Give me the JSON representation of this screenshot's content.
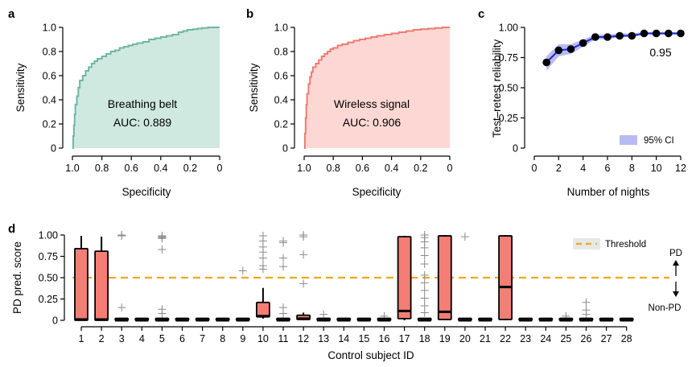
{
  "colors": {
    "belt_line": "#6fb7a2",
    "belt_fill": "#cfe8e0",
    "wireless_line": "#ee7b74",
    "wireless_fill": "#fdd7d4",
    "reliability_line": "#1f28d8",
    "ci_fill": "#b8bbf2",
    "box_fill": "#f47e75",
    "threshold": "#f0a81d",
    "outlier": "#8a8a8a"
  },
  "chart_data": [
    {
      "panel": "a",
      "type": "area",
      "title": "",
      "xlabel": "Specificity",
      "ylabel": "Sensitivity",
      "x_reversed": true,
      "xlim": [
        1.0,
        0
      ],
      "ylim": [
        0,
        1.0
      ],
      "x_ticks": [
        "1.0",
        "0.8",
        "0.6",
        "0.4",
        "0.2",
        "0"
      ],
      "x_tick_values": [
        1.0,
        0.8,
        0.6,
        0.4,
        0.2,
        0
      ],
      "y_ticks": [
        "0",
        "0.2",
        "0.4",
        "0.6",
        "0.8",
        "1.0"
      ],
      "y_tick_values": [
        0,
        0.2,
        0.4,
        0.6,
        0.8,
        1.0
      ],
      "annotation_name": "Breathing belt",
      "annotation_auc": "AUC: 0.889",
      "x": [
        1.0,
        0.995,
        0.99,
        0.985,
        0.98,
        0.97,
        0.96,
        0.95,
        0.93,
        0.91,
        0.89,
        0.87,
        0.85,
        0.83,
        0.8,
        0.77,
        0.74,
        0.71,
        0.68,
        0.65,
        0.62,
        0.59,
        0.56,
        0.52,
        0.48,
        0.44,
        0.4,
        0.36,
        0.32,
        0.28,
        0.25,
        0.22,
        0.18,
        0.15,
        0.12,
        0.08,
        0.05,
        0.02,
        0
      ],
      "y": [
        0,
        0.1,
        0.19,
        0.28,
        0.36,
        0.43,
        0.5,
        0.56,
        0.6,
        0.64,
        0.67,
        0.7,
        0.72,
        0.74,
        0.76,
        0.78,
        0.8,
        0.81,
        0.83,
        0.84,
        0.85,
        0.86,
        0.87,
        0.88,
        0.9,
        0.91,
        0.92,
        0.93,
        0.94,
        0.96,
        0.97,
        0.98,
        0.985,
        0.99,
        0.995,
        1.0,
        1.0,
        1.0,
        1.0
      ]
    },
    {
      "panel": "b",
      "type": "area",
      "title": "",
      "xlabel": "Specificity",
      "ylabel": "Sensitivity",
      "x_reversed": true,
      "xlim": [
        1.0,
        0
      ],
      "ylim": [
        0,
        1.0
      ],
      "x_ticks": [
        "1.0",
        "0.8",
        "0.6",
        "0.4",
        "0.2",
        "0"
      ],
      "x_tick_values": [
        1.0,
        0.8,
        0.6,
        0.4,
        0.2,
        0
      ],
      "y_ticks": [
        "0",
        "0.2",
        "0.4",
        "0.6",
        "0.8",
        "1.0"
      ],
      "y_tick_values": [
        0,
        0.2,
        0.4,
        0.6,
        0.8,
        1.0
      ],
      "annotation_name": "Wireless signal",
      "annotation_auc": "AUC: 0.906",
      "x": [
        1.0,
        0.995,
        0.99,
        0.985,
        0.98,
        0.97,
        0.96,
        0.95,
        0.94,
        0.92,
        0.9,
        0.88,
        0.86,
        0.84,
        0.82,
        0.8,
        0.77,
        0.74,
        0.7,
        0.66,
        0.62,
        0.58,
        0.54,
        0.5,
        0.45,
        0.4,
        0.35,
        0.3,
        0.25,
        0.2,
        0.15,
        0.1,
        0.05,
        0
      ],
      "y": [
        0,
        0.12,
        0.25,
        0.36,
        0.45,
        0.53,
        0.59,
        0.63,
        0.67,
        0.7,
        0.73,
        0.76,
        0.78,
        0.8,
        0.82,
        0.83,
        0.85,
        0.86,
        0.875,
        0.89,
        0.9,
        0.91,
        0.92,
        0.93,
        0.94,
        0.95,
        0.96,
        0.97,
        0.98,
        0.985,
        0.99,
        0.995,
        1.0,
        1.0
      ]
    },
    {
      "panel": "c",
      "type": "line",
      "title": "",
      "xlabel": "Number of nights",
      "ylabel": "Test–retest reliability",
      "xlim": [
        0,
        12
      ],
      "ylim": [
        0,
        1.0
      ],
      "x_ticks": [
        "0",
        "2",
        "4",
        "6",
        "8",
        "10",
        "12"
      ],
      "x_tick_values": [
        0,
        2,
        4,
        6,
        8,
        10,
        12
      ],
      "y_ticks": [
        "0",
        "0.25",
        "0.50",
        "0.75",
        "1.00"
      ],
      "y_tick_values": [
        0,
        0.25,
        0.5,
        0.75,
        1.0
      ],
      "legend": "95% CI",
      "end_label": "0.95",
      "x": [
        1,
        2,
        3,
        4,
        5,
        6,
        7,
        8,
        9,
        10,
        11,
        12
      ],
      "y": [
        0.71,
        0.81,
        0.82,
        0.87,
        0.92,
        0.92,
        0.93,
        0.93,
        0.95,
        0.95,
        0.95,
        0.95
      ],
      "ci_low": [
        0.64,
        0.76,
        0.78,
        0.84,
        0.9,
        0.9,
        0.92,
        0.92,
        0.94,
        0.94,
        0.94,
        0.94
      ],
      "ci_high": [
        0.76,
        0.86,
        0.86,
        0.9,
        0.94,
        0.94,
        0.95,
        0.95,
        0.96,
        0.96,
        0.96,
        0.96
      ]
    },
    {
      "panel": "d",
      "type": "box",
      "title": "",
      "xlabel": "Control subject ID",
      "ylabel": "PD pred. score",
      "ylim": [
        0,
        1.0
      ],
      "y_ticks": [
        "0",
        "0.25",
        "0.50",
        "0.75",
        "1.00"
      ],
      "y_tick_values": [
        0,
        0.25,
        0.5,
        0.75,
        1.0
      ],
      "categories": [
        "1",
        "2",
        "3",
        "4",
        "5",
        "6",
        "7",
        "8",
        "9",
        "10",
        "11",
        "12",
        "13",
        "14",
        "15",
        "16",
        "17",
        "18",
        "19",
        "20",
        "21",
        "22",
        "23",
        "24",
        "25",
        "26",
        "27",
        "28"
      ],
      "threshold": 0.5,
      "threshold_label": "Threshold",
      "pd_label": "PD",
      "nonpd_label": "Non-PD",
      "boxes": [
        {
          "q1": 0.0,
          "median": 0.01,
          "q3": 0.84,
          "wlo": 0.0,
          "whi": 0.99,
          "outliers": []
        },
        {
          "q1": 0.0,
          "median": 0.01,
          "q3": 0.81,
          "wlo": 0.0,
          "whi": 0.98,
          "outliers": []
        },
        {
          "q1": 0.0,
          "median": 0.0,
          "q3": 0.01,
          "wlo": 0.0,
          "whi": 0.02,
          "outliers": [
            0.99,
            1.0,
            0.15
          ]
        },
        {
          "q1": 0.0,
          "median": 0.0,
          "q3": 0.01,
          "wlo": 0.0,
          "whi": 0.01,
          "outliers": []
        },
        {
          "q1": 0.0,
          "median": 0.0,
          "q3": 0.01,
          "wlo": 0.0,
          "whi": 0.02,
          "outliers": [
            0.98,
            0.97,
            0.99,
            0.96,
            0.83,
            0.13,
            0.08
          ]
        },
        {
          "q1": 0.0,
          "median": 0.0,
          "q3": 0.01,
          "wlo": 0.0,
          "whi": 0.01,
          "outliers": []
        },
        {
          "q1": 0.0,
          "median": 0.0,
          "q3": 0.01,
          "wlo": 0.0,
          "whi": 0.01,
          "outliers": []
        },
        {
          "q1": 0.0,
          "median": 0.0,
          "q3": 0.01,
          "wlo": 0.0,
          "whi": 0.01,
          "outliers": []
        },
        {
          "q1": 0.0,
          "median": 0.0,
          "q3": 0.01,
          "wlo": 0.0,
          "whi": 0.01,
          "outliers": [
            0.58
          ]
        },
        {
          "q1": 0.04,
          "median": 0.05,
          "q3": 0.21,
          "wlo": 0.02,
          "whi": 0.38,
          "outliers": [
            0.99,
            0.93,
            0.86,
            0.8,
            0.73,
            0.64,
            0.6
          ]
        },
        {
          "q1": 0.0,
          "median": 0.0,
          "q3": 0.01,
          "wlo": 0.0,
          "whi": 0.02,
          "outliers": [
            0.93,
            0.91,
            0.73,
            0.63,
            0.15,
            0.08
          ]
        },
        {
          "q1": 0.01,
          "median": 0.02,
          "q3": 0.06,
          "wlo": 0.0,
          "whi": 0.09,
          "outliers": [
            1.0,
            0.98,
            0.77,
            0.43
          ]
        },
        {
          "q1": 0.0,
          "median": 0.0,
          "q3": 0.01,
          "wlo": 0.0,
          "whi": 0.01,
          "outliers": [
            0.07
          ]
        },
        {
          "q1": 0.0,
          "median": 0.0,
          "q3": 0.01,
          "wlo": 0.0,
          "whi": 0.01,
          "outliers": []
        },
        {
          "q1": 0.0,
          "median": 0.0,
          "q3": 0.01,
          "wlo": 0.0,
          "whi": 0.01,
          "outliers": []
        },
        {
          "q1": 0.0,
          "median": 0.0,
          "q3": 0.01,
          "wlo": 0.0,
          "whi": 0.01,
          "outliers": [
            0.05
          ]
        },
        {
          "q1": 0.02,
          "median": 0.11,
          "q3": 0.98,
          "wlo": 0.0,
          "whi": 0.99,
          "outliers": []
        },
        {
          "q1": 0.0,
          "median": 0.0,
          "q3": 0.01,
          "wlo": 0.0,
          "whi": 0.02,
          "outliers": [
            1.0,
            0.97,
            0.92,
            0.85,
            0.76,
            0.66,
            0.53,
            0.44,
            0.35,
            0.26,
            0.17,
            0.09
          ]
        },
        {
          "q1": 0.01,
          "median": 0.1,
          "q3": 0.99,
          "wlo": 0.0,
          "whi": 1.0,
          "outliers": []
        },
        {
          "q1": 0.0,
          "median": 0.0,
          "q3": 0.01,
          "wlo": 0.0,
          "whi": 0.01,
          "outliers": [
            0.98
          ]
        },
        {
          "q1": 0.0,
          "median": 0.0,
          "q3": 0.01,
          "wlo": 0.0,
          "whi": 0.01,
          "outliers": []
        },
        {
          "q1": 0.01,
          "median": 0.39,
          "q3": 0.99,
          "wlo": 0.0,
          "whi": 1.0,
          "outliers": []
        },
        {
          "q1": 0.0,
          "median": 0.0,
          "q3": 0.01,
          "wlo": 0.0,
          "whi": 0.01,
          "outliers": []
        },
        {
          "q1": 0.0,
          "median": 0.0,
          "q3": 0.01,
          "wlo": 0.0,
          "whi": 0.01,
          "outliers": []
        },
        {
          "q1": 0.0,
          "median": 0.0,
          "q3": 0.01,
          "wlo": 0.0,
          "whi": 0.01,
          "outliers": [
            0.05
          ]
        },
        {
          "q1": 0.0,
          "median": 0.0,
          "q3": 0.01,
          "wlo": 0.0,
          "whi": 0.02,
          "outliers": [
            0.21,
            0.12,
            0.07
          ]
        },
        {
          "q1": 0.0,
          "median": 0.0,
          "q3": 0.01,
          "wlo": 0.0,
          "whi": 0.01,
          "outliers": []
        },
        {
          "q1": 0.0,
          "median": 0.0,
          "q3": 0.01,
          "wlo": 0.0,
          "whi": 0.01,
          "outliers": []
        }
      ]
    }
  ]
}
